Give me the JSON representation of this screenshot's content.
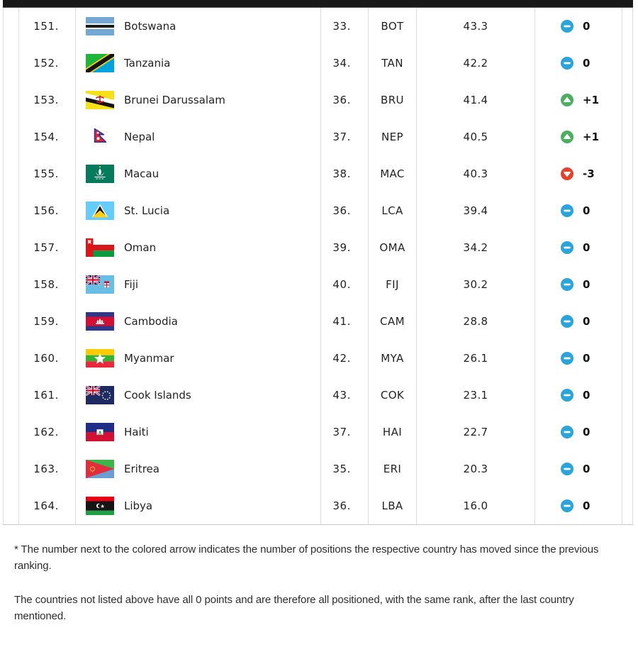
{
  "table": {
    "rows": [
      {
        "rank": "151.",
        "country": "Botswana",
        "flag": "botswana",
        "conf_rank": "33.",
        "code": "BOT",
        "points": "43.3",
        "movement": {
          "type": "same",
          "label": "0"
        }
      },
      {
        "rank": "152.",
        "country": "Tanzania",
        "flag": "tanzania",
        "conf_rank": "34.",
        "code": "TAN",
        "points": "42.2",
        "movement": {
          "type": "same",
          "label": "0"
        }
      },
      {
        "rank": "153.",
        "country": "Brunei Darussalam",
        "flag": "brunei",
        "conf_rank": "36.",
        "code": "BRU",
        "points": "41.4",
        "movement": {
          "type": "up",
          "label": "+1"
        }
      },
      {
        "rank": "154.",
        "country": "Nepal",
        "flag": "nepal",
        "conf_rank": "37.",
        "code": "NEP",
        "points": "40.5",
        "movement": {
          "type": "up",
          "label": "+1"
        }
      },
      {
        "rank": "155.",
        "country": "Macau",
        "flag": "macau",
        "conf_rank": "38.",
        "code": "MAC",
        "points": "40.3",
        "movement": {
          "type": "down",
          "label": "-3"
        }
      },
      {
        "rank": "156.",
        "country": "St. Lucia",
        "flag": "st_lucia",
        "conf_rank": "36.",
        "code": "LCA",
        "points": "39.4",
        "movement": {
          "type": "same",
          "label": "0"
        }
      },
      {
        "rank": "157.",
        "country": "Oman",
        "flag": "oman",
        "conf_rank": "39.",
        "code": "OMA",
        "points": "34.2",
        "movement": {
          "type": "same",
          "label": "0"
        }
      },
      {
        "rank": "158.",
        "country": "Fiji",
        "flag": "fiji",
        "conf_rank": "40.",
        "code": "FIJ",
        "points": "30.2",
        "movement": {
          "type": "same",
          "label": "0"
        }
      },
      {
        "rank": "159.",
        "country": "Cambodia",
        "flag": "cambodia",
        "conf_rank": "41.",
        "code": "CAM",
        "points": "28.8",
        "movement": {
          "type": "same",
          "label": "0"
        }
      },
      {
        "rank": "160.",
        "country": "Myanmar",
        "flag": "myanmar",
        "conf_rank": "42.",
        "code": "MYA",
        "points": "26.1",
        "movement": {
          "type": "same",
          "label": "0"
        }
      },
      {
        "rank": "161.",
        "country": "Cook Islands",
        "flag": "cook_islands",
        "conf_rank": "43.",
        "code": "COK",
        "points": "23.1",
        "movement": {
          "type": "same",
          "label": "0"
        }
      },
      {
        "rank": "162.",
        "country": "Haiti",
        "flag": "haiti",
        "conf_rank": "37.",
        "code": "HAI",
        "points": "22.7",
        "movement": {
          "type": "same",
          "label": "0"
        }
      },
      {
        "rank": "163.",
        "country": "Eritrea",
        "flag": "eritrea",
        "conf_rank": "35.",
        "code": "ERI",
        "points": "20.3",
        "movement": {
          "type": "same",
          "label": "0"
        }
      },
      {
        "rank": "164.",
        "country": "Libya",
        "flag": "libya",
        "conf_rank": "36.",
        "code": "LBA",
        "points": "16.0",
        "movement": {
          "type": "same",
          "label": "0"
        }
      }
    ]
  },
  "movement_colors": {
    "same": "#2AA4DB",
    "up": "#4CAE5F",
    "down": "#E8402D"
  },
  "footnotes": [
    "* The number next to the colored arrow indicates the number of positions the respective country has moved since the previous ranking.",
    "The countries not listed above have all 0 points and are therefore all positioned, with the same rank, after the last country mentioned."
  ]
}
